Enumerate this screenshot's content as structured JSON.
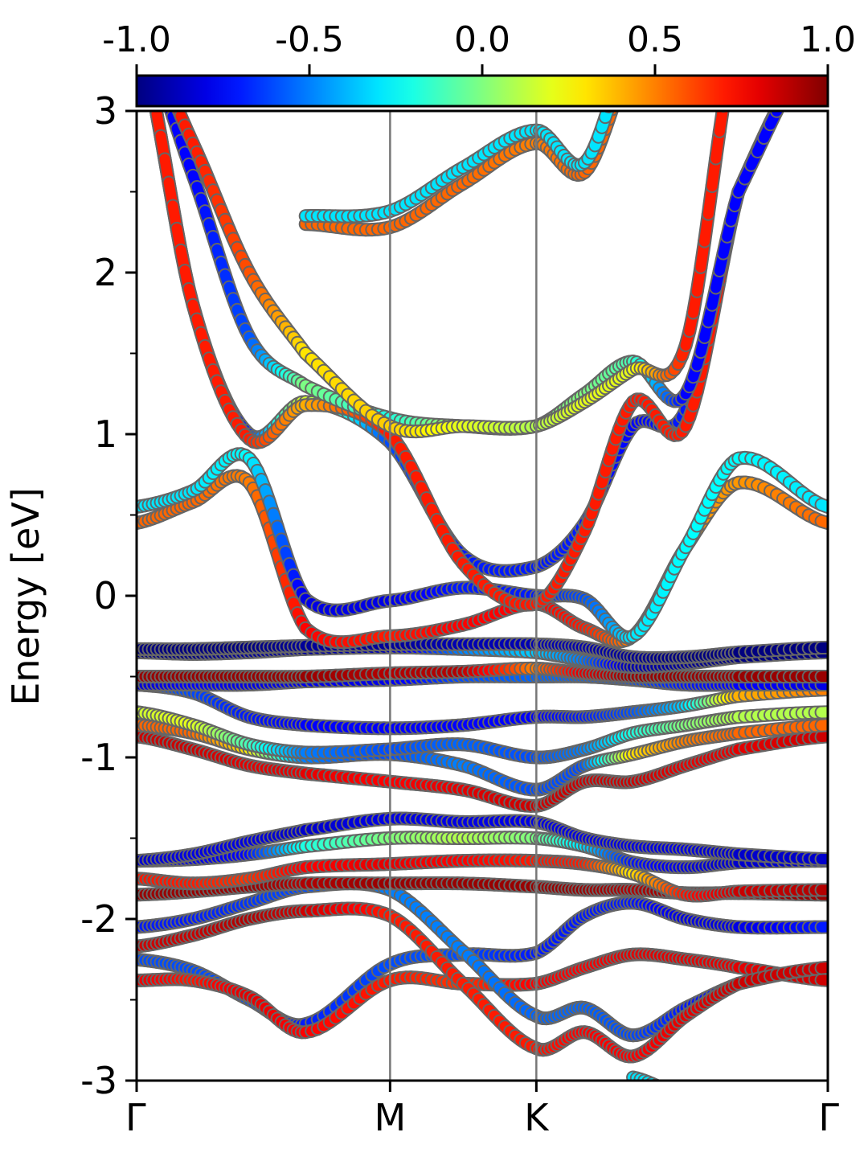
{
  "chart_data": {
    "type": "line",
    "title": "",
    "ylabel": "Energy [eV]",
    "xlabel": "",
    "ylim": [
      -3,
      3
    ],
    "yticks": [
      -3,
      -2,
      -1,
      0,
      1,
      2,
      3
    ],
    "ytick_labels": [
      "-3",
      "-2",
      "-1",
      "0",
      "1",
      "2",
      "3"
    ],
    "xlim": [
      0,
      1
    ],
    "high_symmetry_points": [
      {
        "label": "Γ",
        "x": 0.0
      },
      {
        "label": "M",
        "x": 0.3667
      },
      {
        "label": "K",
        "x": 0.5783
      },
      {
        "label": "Γ",
        "x": 1.0
      }
    ],
    "colorbar": {
      "range": [
        -1.0,
        1.0
      ],
      "ticks": [
        -1.0,
        -0.5,
        0.0,
        0.5,
        1.0
      ],
      "tick_labels": [
        "-1.0",
        "-0.5",
        "0.0",
        "0.5",
        "1.0"
      ],
      "colormap": "jet",
      "placement": "top"
    },
    "grid": false,
    "note_color": "spin/weight projection encoded by colour; values in colorbar units",
    "x": [
      0.0,
      0.0815,
      0.163,
      0.2444,
      0.3667,
      0.4722,
      0.5783,
      0.6482,
      0.7181,
      0.7944,
      0.8707,
      1.0
    ],
    "series": [
      {
        "y": [
          -2.25,
          -2.32,
          -2.5,
          -2.65,
          -2.28,
          -2.22,
          -2.21,
          -1.98,
          -1.9,
          -2.0,
          -2.05,
          -2.05
        ],
        "c": [
          -0.6,
          -0.6,
          -0.6,
          -0.7,
          -0.6,
          -0.6,
          -0.7,
          -0.7,
          -0.7,
          -0.8,
          -0.8,
          -0.7
        ]
      },
      {
        "y": [
          -2.38,
          -2.38,
          -2.48,
          -2.7,
          -2.38,
          -2.4,
          -2.4,
          -2.3,
          -2.22,
          -2.25,
          -2.3,
          -2.38
        ],
        "c": [
          0.8,
          0.7,
          0.8,
          0.75,
          0.7,
          0.65,
          0.75,
          0.75,
          0.8,
          0.8,
          0.8,
          0.85
        ]
      },
      {
        "y": [
          -2.05,
          -2.0,
          -1.9,
          -1.8,
          -1.82,
          -2.2,
          -2.6,
          -2.55,
          -2.72,
          -2.55,
          -2.4,
          -2.3
        ],
        "c": [
          -0.7,
          -0.7,
          -0.65,
          -0.6,
          -0.5,
          -0.5,
          -0.55,
          -0.55,
          -0.6,
          -0.7,
          -0.75,
          -0.8
        ]
      },
      {
        "y": [
          -2.17,
          -2.1,
          -2.0,
          -1.95,
          -1.98,
          -2.4,
          -2.8,
          -2.7,
          -2.85,
          -2.6,
          -2.4,
          -2.3
        ],
        "c": [
          0.85,
          0.85,
          0.9,
          0.85,
          0.7,
          0.7,
          0.7,
          0.75,
          0.75,
          0.8,
          0.85,
          0.85
        ]
      },
      {
        "y": [
          -1.85,
          -1.83,
          -1.8,
          -1.78,
          -1.78,
          -1.78,
          -1.8,
          -1.82,
          -1.82,
          -1.84,
          -1.84,
          -1.85
        ],
        "c": [
          0.95,
          0.95,
          0.95,
          0.9,
          0.95,
          0.95,
          0.95,
          0.95,
          0.9,
          0.95,
          0.95,
          0.95
        ]
      },
      {
        "y": [
          -1.75,
          -1.78,
          -1.75,
          -1.68,
          -1.66,
          -1.64,
          -1.64,
          -1.66,
          -1.72,
          -1.85,
          -1.83,
          -1.82
        ],
        "c": [
          0.7,
          0.7,
          0.65,
          0.75,
          0.8,
          0.75,
          0.7,
          0.7,
          0.3,
          0.7,
          0.85,
          0.9
        ]
      },
      {
        "y": [
          -1.64,
          -1.63,
          -1.6,
          -1.55,
          -1.5,
          -1.5,
          -1.5,
          -1.55,
          -1.65,
          -1.68,
          -1.65,
          -1.64
        ],
        "c": [
          -0.8,
          -0.8,
          -0.75,
          -0.2,
          0.0,
          0.1,
          0.0,
          -0.3,
          -0.7,
          -0.8,
          -0.85,
          -0.85
        ]
      },
      {
        "y": [
          -1.64,
          -1.6,
          -1.52,
          -1.45,
          -1.38,
          -1.4,
          -1.4,
          -1.5,
          -1.55,
          -1.57,
          -1.6,
          -1.63
        ],
        "c": [
          -0.85,
          -0.8,
          -0.8,
          -0.85,
          -0.8,
          -0.8,
          -0.8,
          -0.8,
          -0.8,
          -0.8,
          -0.85,
          -0.85
        ]
      },
      {
        "y": [
          -0.87,
          -0.95,
          -1.05,
          -1.1,
          -1.15,
          -1.2,
          -1.3,
          -1.15,
          -1.15,
          -1.05,
          -0.95,
          -0.87
        ],
        "c": [
          0.85,
          0.85,
          0.8,
          0.8,
          0.75,
          0.8,
          0.85,
          0.85,
          0.85,
          0.8,
          0.8,
          0.85
        ]
      },
      {
        "y": [
          -0.8,
          -0.85,
          -0.95,
          -1.0,
          -0.98,
          -1.05,
          -1.2,
          -1.05,
          -0.98,
          -0.9,
          -0.85,
          -0.8
        ],
        "c": [
          0.55,
          0.55,
          0.3,
          -0.5,
          -0.6,
          -0.5,
          -0.6,
          -0.6,
          0.3,
          0.5,
          0.55,
          0.55
        ]
      },
      {
        "y": [
          -0.72,
          -0.8,
          -0.92,
          -0.97,
          -0.95,
          -0.92,
          -1.0,
          -0.95,
          -0.85,
          -0.8,
          -0.75,
          -0.72
        ],
        "c": [
          0.15,
          0.2,
          -0.1,
          -0.5,
          -0.6,
          -0.55,
          -0.6,
          -0.5,
          -0.2,
          0.0,
          0.1,
          0.1
        ]
      },
      {
        "y": [
          -0.55,
          -0.6,
          -0.75,
          -0.8,
          -0.82,
          -0.8,
          -0.75,
          -0.75,
          -0.72,
          -0.68,
          -0.62,
          -0.58
        ],
        "c": [
          -0.6,
          -0.6,
          -0.7,
          -0.75,
          -0.75,
          -0.75,
          -0.75,
          -0.7,
          -0.6,
          -0.35,
          0.4,
          0.5
        ]
      },
      {
        "y": [
          -0.55,
          -0.55,
          -0.55,
          -0.53,
          -0.52,
          -0.5,
          -0.5,
          -0.5,
          -0.52,
          -0.55,
          -0.55,
          -0.55
        ],
        "c": [
          -0.85,
          -0.75,
          -0.8,
          -0.8,
          -0.8,
          -0.6,
          -0.55,
          -0.55,
          -0.6,
          -0.7,
          -0.75,
          -0.8
        ]
      },
      {
        "y": [
          -0.5,
          -0.5,
          -0.5,
          -0.5,
          -0.48,
          -0.47,
          -0.45,
          -0.48,
          -0.5,
          -0.5,
          -0.5,
          -0.5
        ],
        "c": [
          0.95,
          0.95,
          0.95,
          0.95,
          0.9,
          0.9,
          0.5,
          0.8,
          0.95,
          0.95,
          0.95,
          0.95
        ]
      },
      {
        "y": [
          -0.35,
          -0.36,
          -0.35,
          -0.33,
          -0.32,
          -0.33,
          -0.35,
          -0.4,
          -0.44,
          -0.42,
          -0.38,
          -0.35
        ],
        "c": [
          -1.0,
          -1.0,
          -0.95,
          -0.95,
          -0.9,
          -0.5,
          -0.35,
          -0.5,
          -0.9,
          -0.95,
          -1.0,
          -1.0
        ]
      },
      {
        "y": [
          -0.33,
          -0.33,
          -0.32,
          -0.31,
          -0.3,
          -0.3,
          -0.3,
          -0.32,
          -0.38,
          -0.38,
          -0.35,
          -0.32
        ],
        "c": [
          -1.0,
          -1.0,
          -1.0,
          -0.95,
          -0.95,
          -0.9,
          -0.9,
          -0.9,
          -0.95,
          -1.0,
          -1.0,
          -1.0
        ]
      },
      {
        "y": [
          0.45,
          0.58,
          0.7,
          -0.2,
          -0.25,
          -0.18,
          -0.05,
          -0.2,
          -0.25,
          0.3,
          0.7,
          0.45
        ],
        "c": [
          0.55,
          0.55,
          0.5,
          0.75,
          0.7,
          0.75,
          0.75,
          0.7,
          0.5,
          0.45,
          0.45,
          0.55
        ]
      },
      {
        "y": [
          0.55,
          0.65,
          0.85,
          -0.02,
          -0.03,
          0.05,
          0.0,
          -0.02,
          -0.25,
          0.3,
          0.85,
          0.55
        ],
        "c": [
          -0.3,
          -0.3,
          -0.25,
          -0.8,
          -0.8,
          -0.7,
          -0.7,
          -0.6,
          -0.3,
          -0.25,
          -0.25,
          -0.3
        ]
      },
      {
        "y": [
          3.5,
          1.8,
          1.0,
          1.2,
          0.95,
          0.25,
          0.18,
          0.45,
          1.05,
          1.15,
          2.5,
          3.5
        ],
        "c": [
          -0.75,
          -0.75,
          -0.7,
          0.2,
          -0.6,
          -0.7,
          -0.7,
          -0.7,
          -0.75,
          -0.7,
          -0.75,
          -0.75
        ]
      },
      {
        "y": [
          3.5,
          1.8,
          0.97,
          1.18,
          1.0,
          0.2,
          -0.05,
          0.4,
          1.2,
          1.05,
          2.5,
          3.5
        ],
        "c": [
          0.7,
          0.7,
          0.7,
          0.4,
          0.7,
          0.7,
          0.7,
          0.7,
          0.7,
          0.7,
          0.7,
          0.7
        ]
      },
      {
        "y": [
          3.5,
          2.6,
          1.6,
          1.3,
          1.1,
          1.05,
          1.05,
          1.25,
          1.45,
          1.25,
          2.5,
          3.5
        ],
        "c": [
          -0.75,
          -0.75,
          -0.6,
          0.0,
          -0.2,
          0.1,
          0.0,
          0.0,
          -0.1,
          -0.75,
          -0.75,
          -0.75
        ]
      },
      {
        "y": [
          3.5,
          2.8,
          2.0,
          1.5,
          1.05,
          1.05,
          1.05,
          1.2,
          1.4,
          1.55,
          3.5,
          3.5
        ],
        "c": [
          0.7,
          0.7,
          0.6,
          0.3,
          0.35,
          0.2,
          0.1,
          0.2,
          0.2,
          0.7,
          0.7,
          0.7
        ]
      },
      {
        "y": [
          null,
          null,
          null,
          2.3,
          2.28,
          2.55,
          2.8,
          2.62,
          3.3,
          null,
          null,
          null
        ],
        "c": [
          0.55,
          0.55,
          0.55,
          0.55,
          0.55,
          0.55,
          0.5,
          0.55,
          0.55,
          0.55,
          0.55,
          0.55
        ]
      },
      {
        "y": [
          null,
          null,
          null,
          2.35,
          2.38,
          2.65,
          2.88,
          2.68,
          3.4,
          null,
          null,
          null
        ],
        "c": [
          -0.3,
          -0.3,
          -0.3,
          -0.3,
          -0.3,
          -0.3,
          -0.3,
          -0.3,
          -0.3,
          -0.3,
          -0.3,
          -0.3
        ]
      },
      {
        "y": [
          null,
          null,
          null,
          null,
          null,
          null,
          null,
          null,
          -2.98,
          -3.1,
          null,
          null
        ],
        "c": [
          -0.3,
          -0.3,
          -0.3,
          -0.3,
          -0.3,
          -0.3,
          -0.3,
          -0.3,
          -0.3,
          -0.3,
          -0.3,
          -0.3
        ]
      }
    ]
  }
}
